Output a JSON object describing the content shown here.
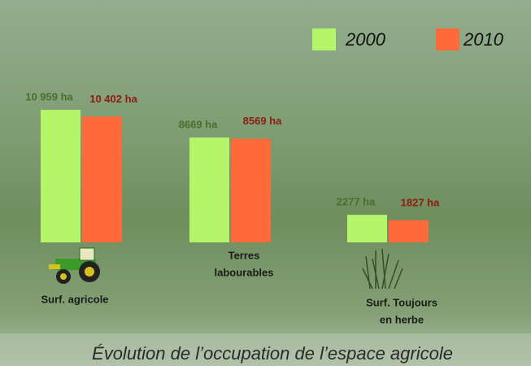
{
  "chart_data": {
    "type": "bar",
    "title": "Évolution de l’occupation de l’espace agricole",
    "categories": [
      [
        "Surf. agricole"
      ],
      [
        "Terres",
        "labourables"
      ],
      [
        "Surf. Toujours",
        "en herbe"
      ]
    ],
    "series": [
      {
        "name": "2000",
        "color": "#b5f56a",
        "values": [
          10959,
          8669,
          2277
        ],
        "value_labels": [
          "10 959 ha",
          "8669 ha",
          "2277 ha"
        ],
        "label_color": "#4a6e2c"
      },
      {
        "name": "2010",
        "color": "#ff6a3a",
        "values": [
          10402,
          8569,
          1827
        ],
        "value_labels": [
          "10 402 ha",
          "8569 ha",
          "1827 ha"
        ],
        "label_color": "#8e1a12"
      }
    ]
  }
}
